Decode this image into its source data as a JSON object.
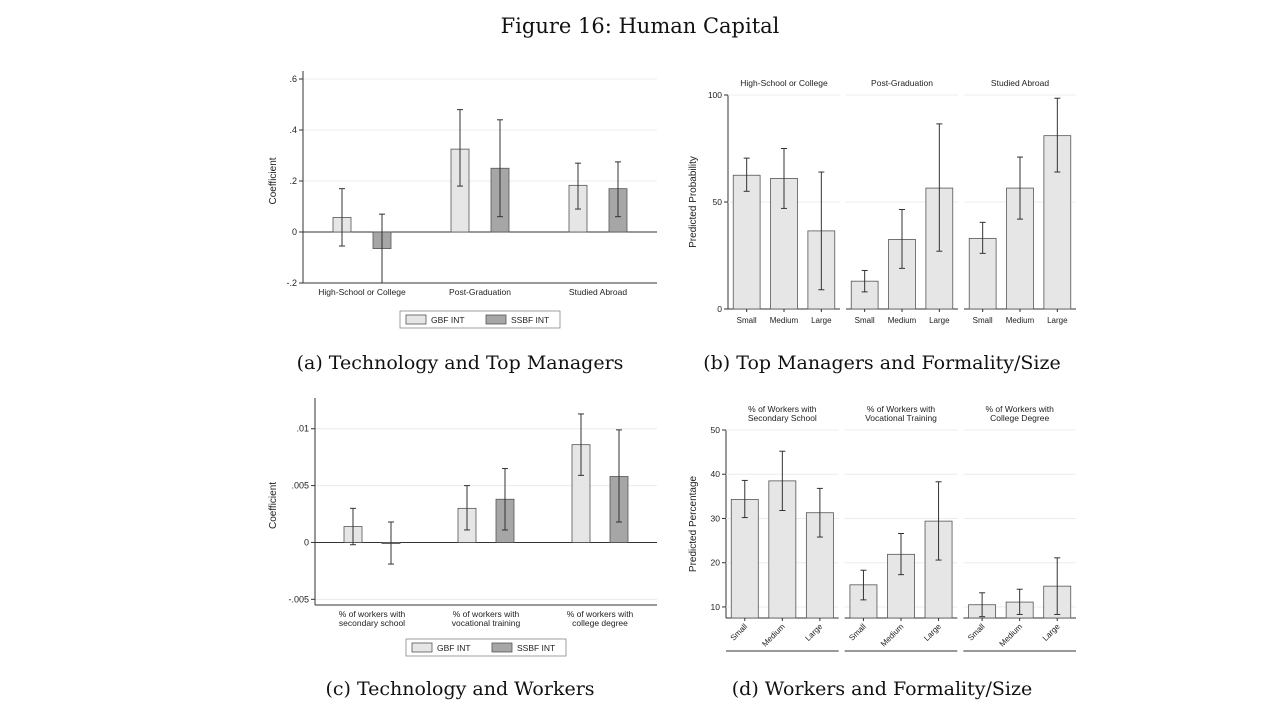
{
  "figure_title": "Figure 16: Human Capital",
  "captions": {
    "a": "(a) Technology and Top Managers",
    "b": "(b) Top Managers and Formality/Size",
    "c": "(c) Technology and Workers",
    "d": "(d) Workers and Formality/Size"
  },
  "colors": {
    "gbf": "#e6e6e6",
    "ssbf": "#a6a6a6",
    "bar_edge": "#555555",
    "panel_bar": "#e6e6e6"
  },
  "chart_data": [
    {
      "id": "a",
      "type": "bar",
      "ylabel": "Coefficient",
      "ylim": [
        -0.2,
        0.6
      ],
      "yticks": [
        -0.2,
        0,
        0.2,
        0.4,
        0.6
      ],
      "ytick_labels": [
        "-.2",
        "0",
        ".2",
        ".4",
        ".6"
      ],
      "categories": [
        [
          "High-School or College"
        ],
        [
          "Post-Graduation"
        ],
        [
          "Studied Abroad"
        ]
      ],
      "series": [
        {
          "name": "GBF INT",
          "values": [
            0.057,
            0.325,
            0.183
          ],
          "ci_low": [
            -0.055,
            0.18,
            0.09
          ],
          "ci_high": [
            0.17,
            0.48,
            0.27
          ]
        },
        {
          "name": "SSBF INT",
          "values": [
            -0.065,
            0.25,
            0.17
          ],
          "ci_low": [
            -0.2,
            0.06,
            0.06
          ],
          "ci_high": [
            0.07,
            0.44,
            0.275
          ]
        }
      ],
      "grid": true,
      "legend": "bottom"
    },
    {
      "id": "b",
      "type": "bar",
      "ylabel": "Predicted Probability",
      "ylim": [
        0,
        100
      ],
      "yticks": [
        0,
        50,
        100
      ],
      "ytick_labels": [
        "0",
        "50",
        "100"
      ],
      "x_rotated": false,
      "panels": [
        {
          "title": [
            "High-School or College"
          ],
          "categories": [
            "Small",
            "Medium",
            "Large"
          ],
          "values": [
            62.5,
            61,
            36.5
          ],
          "ci_low": [
            55,
            47,
            9
          ],
          "ci_high": [
            70.5,
            75,
            64
          ]
        },
        {
          "title": [
            "Post-Graduation"
          ],
          "categories": [
            "Small",
            "Medium",
            "Large"
          ],
          "values": [
            13,
            32.5,
            56.5
          ],
          "ci_low": [
            8,
            19,
            27
          ],
          "ci_high": [
            18,
            46.5,
            86.5
          ]
        },
        {
          "title": [
            "Studied Abroad"
          ],
          "categories": [
            "Small",
            "Medium",
            "Large"
          ],
          "values": [
            33,
            56.5,
            81
          ],
          "ci_low": [
            26,
            42,
            64
          ],
          "ci_high": [
            40.5,
            71,
            98.5
          ]
        }
      ],
      "grid": true
    },
    {
      "id": "c",
      "type": "bar",
      "ylabel": "Coefficient",
      "ylim": [
        -0.0055,
        0.012
      ],
      "yticks": [
        -0.005,
        0,
        0.005,
        0.01
      ],
      "ytick_labels": [
        "-.005",
        "0",
        ".005",
        ".01"
      ],
      "categories": [
        [
          "% of workers with",
          "secondary school"
        ],
        [
          "% of workers with",
          "vocational training"
        ],
        [
          "% of workers with",
          "college degree"
        ]
      ],
      "series": [
        {
          "name": "GBF INT",
          "values": [
            0.0014,
            0.003,
            0.0086
          ],
          "ci_low": [
            -0.0002,
            0.0011,
            0.0059
          ],
          "ci_high": [
            0.003,
            0.005,
            0.0113
          ]
        },
        {
          "name": "SSBF INT",
          "values": [
            -0.0001,
            0.0038,
            0.0058
          ],
          "ci_low": [
            -0.0019,
            0.0011,
            0.0018
          ],
          "ci_high": [
            0.0018,
            0.0065,
            0.0099
          ]
        }
      ],
      "grid": true,
      "legend": "bottom"
    },
    {
      "id": "d",
      "type": "bar",
      "ylabel": "Predicted Percentage",
      "ylim": [
        7.5,
        50
      ],
      "yticks": [
        10,
        20,
        30,
        40,
        50
      ],
      "ytick_labels": [
        "10",
        "20",
        "30",
        "40",
        "50"
      ],
      "x_rotated": true,
      "panels": [
        {
          "title": [
            "% of Workers with",
            "Secondary School"
          ],
          "categories": [
            "Small",
            "Medium",
            "Large"
          ],
          "values": [
            34.3,
            38.5,
            31.3
          ],
          "ci_low": [
            30.2,
            31.8,
            25.8
          ],
          "ci_high": [
            38.6,
            45.2,
            36.8
          ]
        },
        {
          "title": [
            "% of Workers with",
            "Vocational Training"
          ],
          "categories": [
            "Small",
            "Medium",
            "Large"
          ],
          "values": [
            15,
            21.9,
            29.4
          ],
          "ci_low": [
            11.6,
            17.3,
            20.6
          ],
          "ci_high": [
            18.3,
            26.6,
            38.3
          ]
        },
        {
          "title": [
            "% of Workers with",
            "College Degree"
          ],
          "categories": [
            "Small",
            "Medium",
            "Large"
          ],
          "values": [
            10.5,
            11.1,
            14.7
          ],
          "ci_low": [
            7.8,
            8.3,
            8.3
          ],
          "ci_high": [
            13.2,
            14,
            21.1
          ]
        }
      ],
      "grid": true
    }
  ]
}
